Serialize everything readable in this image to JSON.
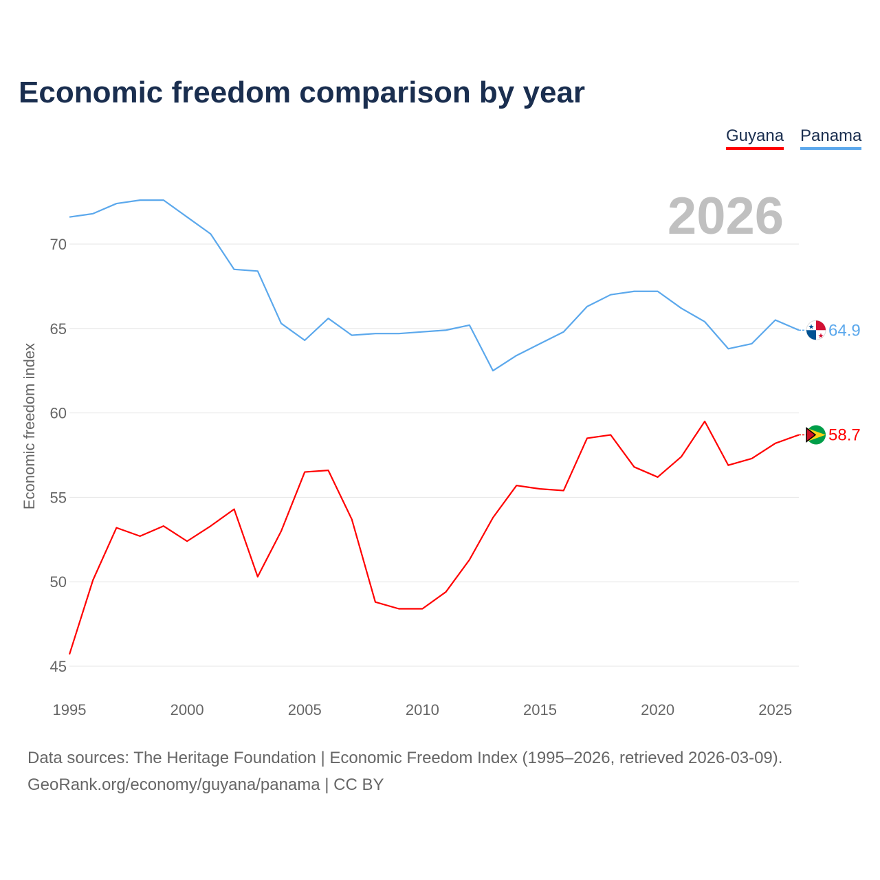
{
  "chart_data": {
    "type": "line",
    "title": "Economic freedom comparison by year",
    "ylabel": "Economic freedom index",
    "xlabel": "",
    "year_label": "2026",
    "ylim": [
      45,
      73
    ],
    "xlim": [
      1995,
      2026
    ],
    "yticks": [
      45,
      50,
      55,
      60,
      65,
      70
    ],
    "xticks": [
      1995,
      2000,
      2005,
      2010,
      2015,
      2020,
      2025
    ],
    "grid": true,
    "legend_placement": "top-right",
    "x": [
      1995,
      1996,
      1997,
      1998,
      1999,
      2000,
      2001,
      2002,
      2003,
      2004,
      2005,
      2006,
      2007,
      2008,
      2009,
      2010,
      2011,
      2012,
      2013,
      2014,
      2015,
      2016,
      2017,
      2018,
      2019,
      2020,
      2021,
      2022,
      2023,
      2024,
      2025,
      2026
    ],
    "series": [
      {
        "name": "Guyana",
        "color": "#ff0000",
        "end_label": "58.7",
        "values": [
          45.7,
          50.1,
          53.2,
          52.7,
          53.3,
          52.4,
          53.3,
          54.3,
          50.3,
          53.0,
          56.5,
          56.6,
          53.7,
          48.8,
          48.4,
          48.4,
          49.4,
          51.3,
          53.8,
          55.7,
          55.5,
          55.4,
          58.5,
          58.7,
          56.8,
          56.2,
          57.4,
          59.5,
          56.9,
          57.3,
          58.2,
          58.7
        ]
      },
      {
        "name": "Panama",
        "color": "#5ba8ec",
        "end_label": "64.9",
        "values": [
          71.6,
          71.8,
          72.4,
          72.6,
          72.6,
          71.6,
          70.6,
          68.5,
          68.4,
          65.3,
          64.3,
          65.6,
          64.6,
          64.7,
          64.7,
          64.8,
          64.9,
          65.2,
          62.5,
          63.4,
          64.1,
          64.8,
          66.3,
          67.0,
          67.2,
          67.2,
          66.2,
          65.4,
          63.8,
          64.1,
          65.5,
          64.9
        ]
      }
    ]
  },
  "footer": {
    "source": "Data sources: The Heritage Foundation | Economic Freedom Index (1995–2026, retrieved 2026-03-09).",
    "credit": "GeoRank.org/economy/guyana/panama | CC BY"
  }
}
